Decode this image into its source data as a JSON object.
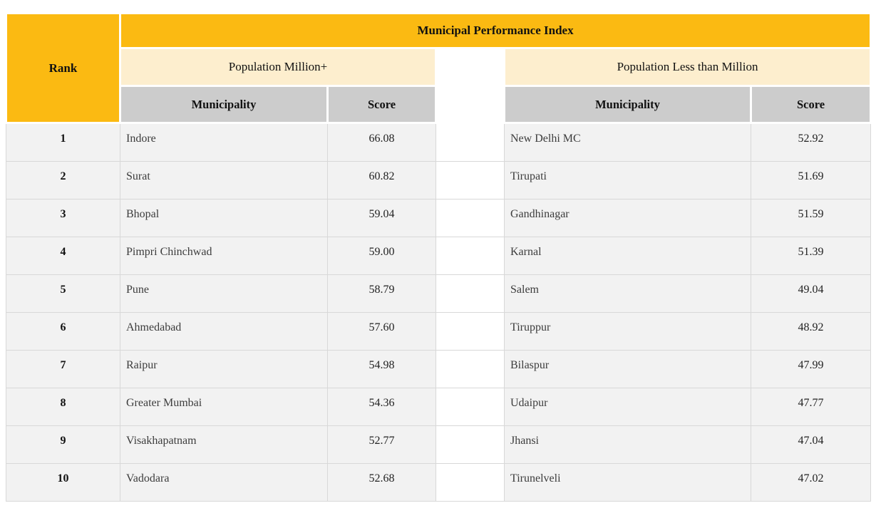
{
  "colors": {
    "header_amber": "#fbba12",
    "group_cream": "#fdeece",
    "column_header_gray": "#cccccc",
    "row_background": "#f2f2f2",
    "grid_border": "#d8d8d8",
    "spacer_white": "#ffffff"
  },
  "table": {
    "title": "Municipal Performance Index",
    "rank_header": "Rank",
    "groups": [
      {
        "label": "Population Million+",
        "municipality_header": "Municipality",
        "score_header": "Score"
      },
      {
        "label": "Population Less than Million",
        "municipality_header": "Municipality",
        "score_header": "Score"
      }
    ],
    "rows": [
      {
        "rank": "1",
        "million_plus": {
          "municipality": "Indore",
          "score": "66.08"
        },
        "less_than_million": {
          "municipality": "New Delhi MC",
          "score": "52.92"
        }
      },
      {
        "rank": "2",
        "million_plus": {
          "municipality": "Surat",
          "score": "60.82"
        },
        "less_than_million": {
          "municipality": "Tirupati",
          "score": "51.69"
        }
      },
      {
        "rank": "3",
        "million_plus": {
          "municipality": "Bhopal",
          "score": "59.04"
        },
        "less_than_million": {
          "municipality": "Gandhinagar",
          "score": "51.59"
        }
      },
      {
        "rank": "4",
        "million_plus": {
          "municipality": "Pimpri Chinchwad",
          "score": "59.00"
        },
        "less_than_million": {
          "municipality": "Karnal",
          "score": "51.39"
        }
      },
      {
        "rank": "5",
        "million_plus": {
          "municipality": "Pune",
          "score": "58.79"
        },
        "less_than_million": {
          "municipality": "Salem",
          "score": "49.04"
        }
      },
      {
        "rank": "6",
        "million_plus": {
          "municipality": "Ahmedabad",
          "score": "57.60"
        },
        "less_than_million": {
          "municipality": "Tiruppur",
          "score": "48.92"
        }
      },
      {
        "rank": "7",
        "million_plus": {
          "municipality": "Raipur",
          "score": "54.98"
        },
        "less_than_million": {
          "municipality": "Bilaspur",
          "score": "47.99"
        }
      },
      {
        "rank": "8",
        "million_plus": {
          "municipality": "Greater Mumbai",
          "score": "54.36"
        },
        "less_than_million": {
          "municipality": "Udaipur",
          "score": "47.77"
        }
      },
      {
        "rank": "9",
        "million_plus": {
          "municipality": "Visakhapatnam",
          "score": "52.77"
        },
        "less_than_million": {
          "municipality": "Jhansi",
          "score": "47.04"
        }
      },
      {
        "rank": "10",
        "million_plus": {
          "municipality": "Vadodara",
          "score": "52.68"
        },
        "less_than_million": {
          "municipality": "Tirunelveli",
          "score": "47.02"
        }
      }
    ]
  },
  "chart_data": {
    "type": "table",
    "title": "Municipal Performance Index",
    "column_groups": [
      "Population Million+",
      "Population Less than Million"
    ],
    "columns": [
      "Rank",
      "Municipality",
      "Score",
      "Municipality",
      "Score"
    ],
    "rows": [
      [
        1,
        "Indore",
        66.08,
        "New Delhi MC",
        52.92
      ],
      [
        2,
        "Surat",
        60.82,
        "Tirupati",
        51.69
      ],
      [
        3,
        "Bhopal",
        59.04,
        "Gandhinagar",
        51.59
      ],
      [
        4,
        "Pimpri Chinchwad",
        59.0,
        "Karnal",
        51.39
      ],
      [
        5,
        "Pune",
        58.79,
        "Salem",
        49.04
      ],
      [
        6,
        "Ahmedabad",
        57.6,
        "Tiruppur",
        48.92
      ],
      [
        7,
        "Raipur",
        54.98,
        "Bilaspur",
        47.99
      ],
      [
        8,
        "Greater Mumbai",
        54.36,
        "Udaipur",
        47.77
      ],
      [
        9,
        "Visakhapatnam",
        52.77,
        "Jhansi",
        47.04
      ],
      [
        10,
        "Vadodara",
        52.68,
        "Tirunelveli",
        47.02
      ]
    ]
  }
}
